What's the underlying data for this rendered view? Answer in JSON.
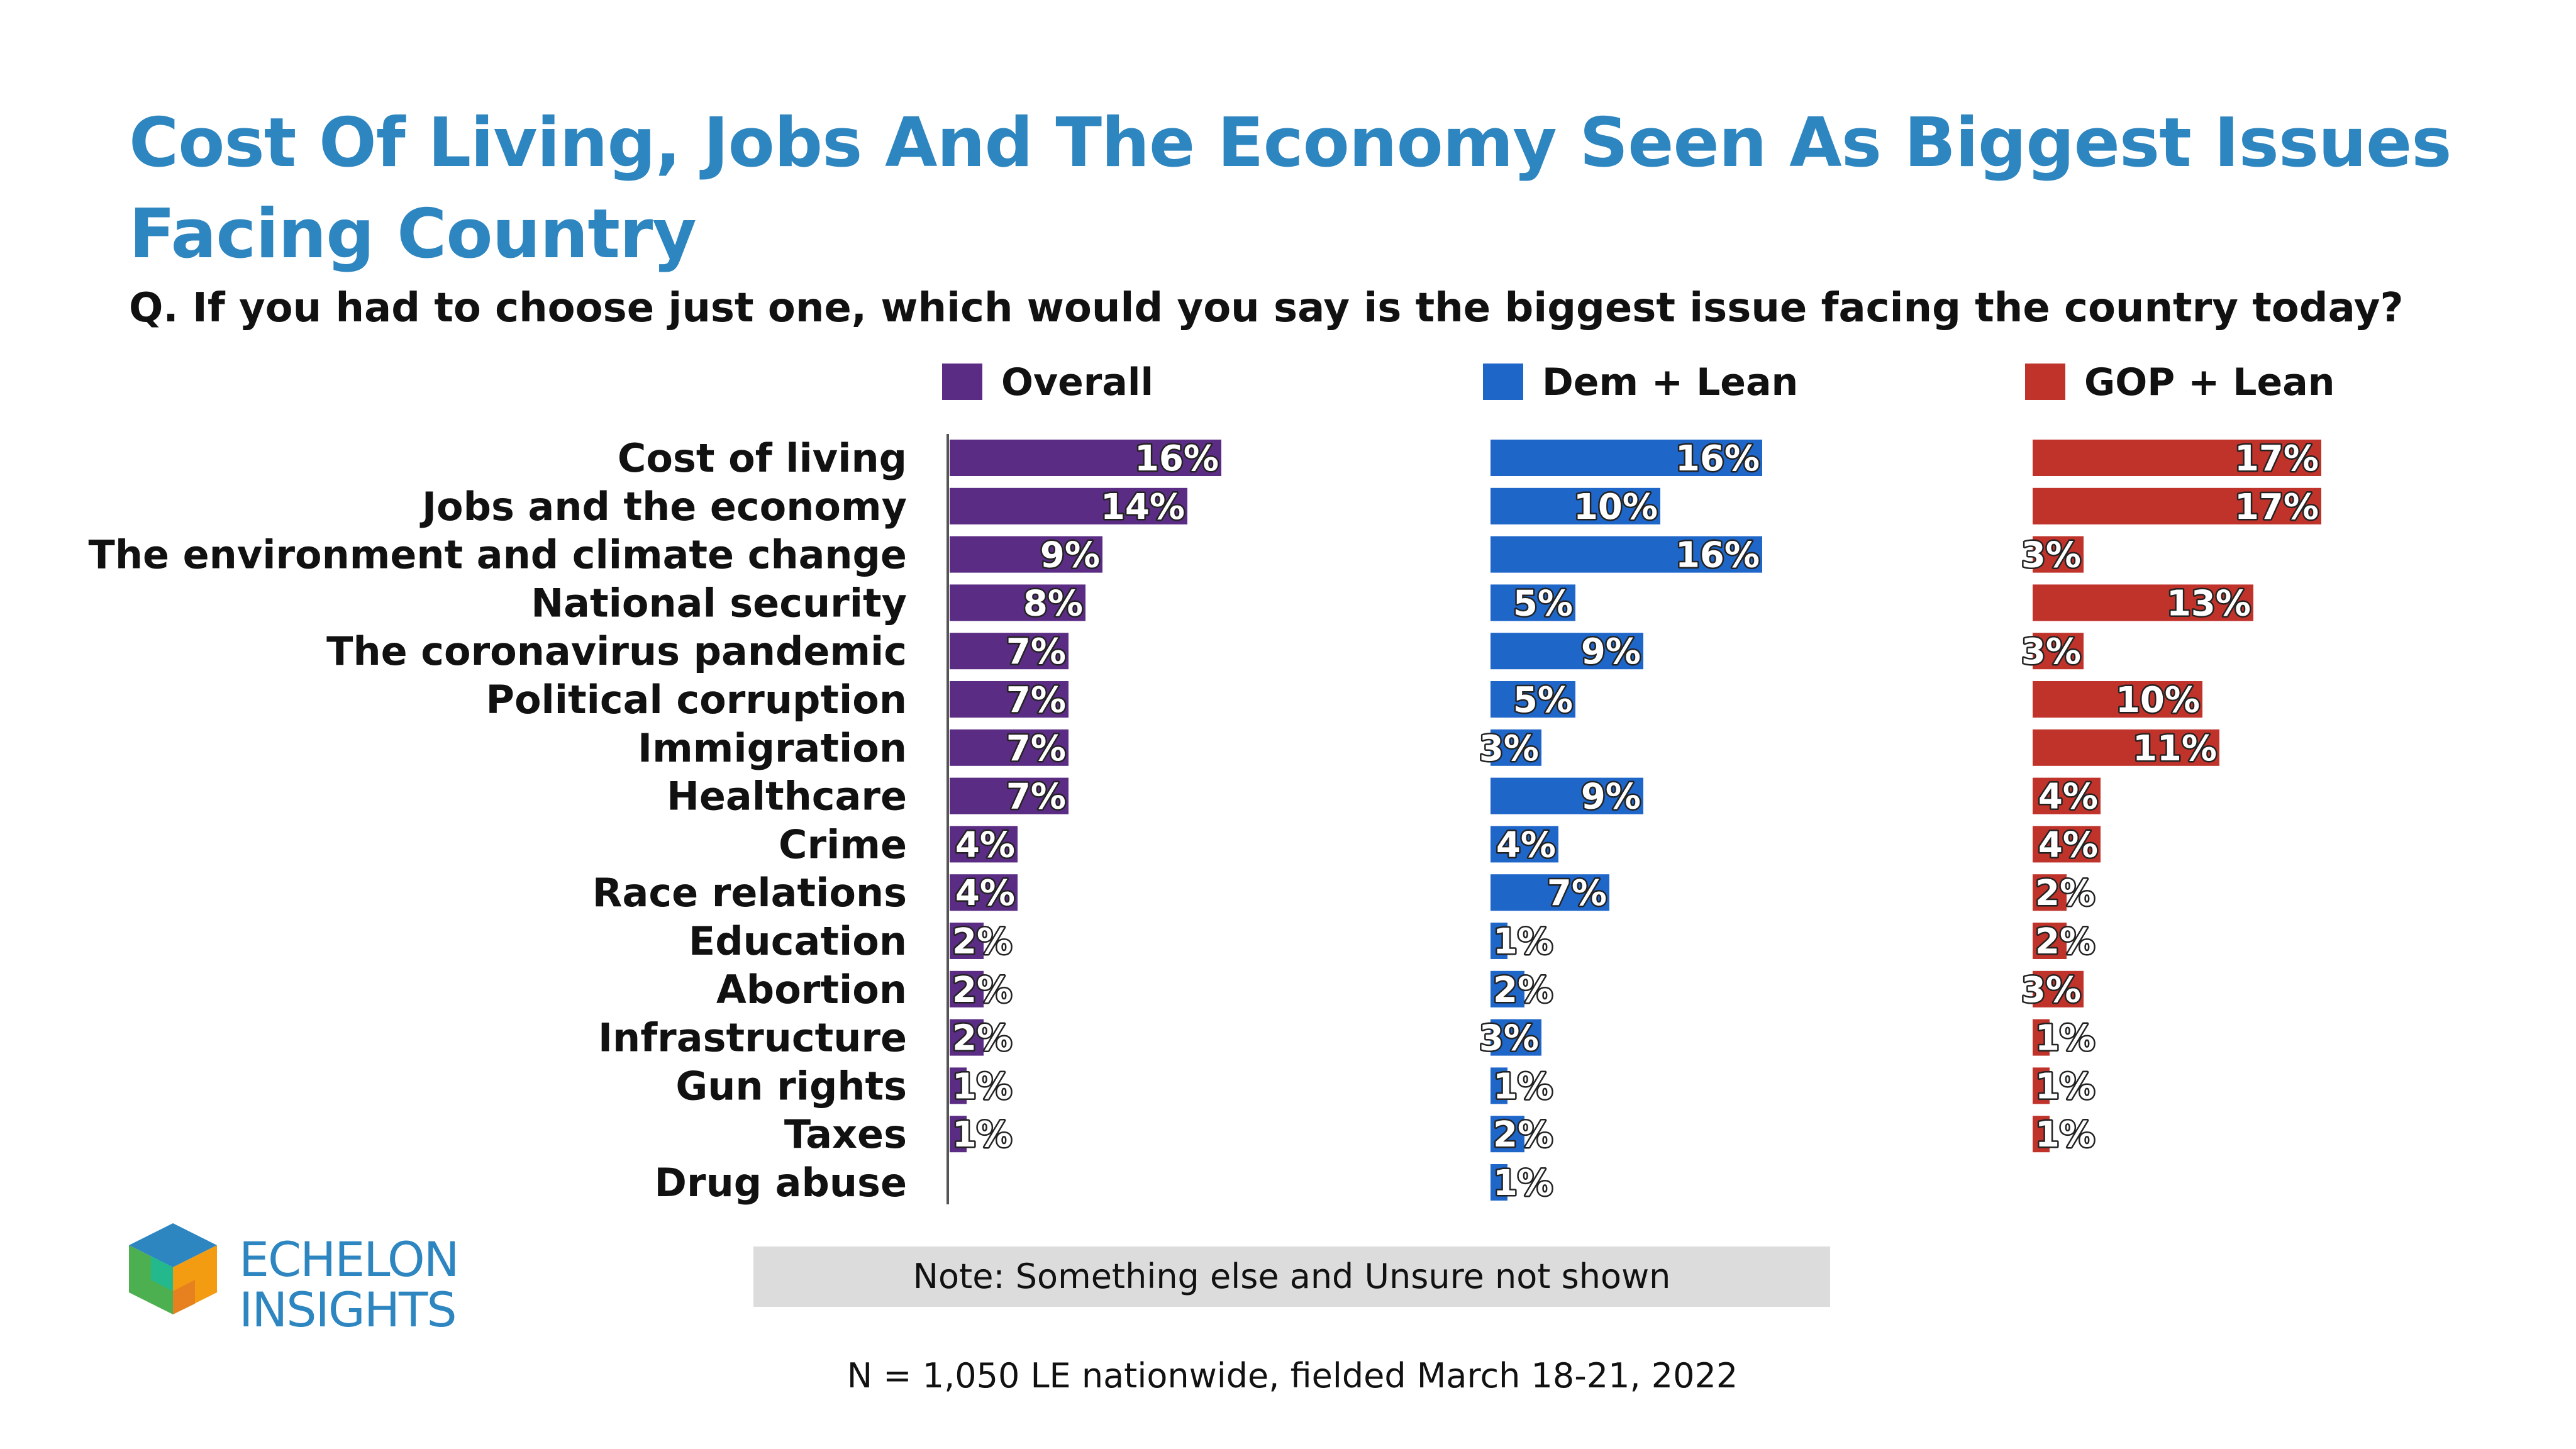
{
  "title": "Cost Of Living, Jobs And The Economy Seen As Biggest Issues Facing Country",
  "question": "Q. If you had to choose just one, which would you say is the biggest issue facing the country today?",
  "note": "Note: Something else and Unsure not shown",
  "footer": "N = 1,050 LE nationwide, fielded March 18-21, 2022",
  "logo": {
    "line1": "ECHELON",
    "line2": "INSIGHTS"
  },
  "colors": {
    "title": "#2E86C1",
    "overall": "#5B2C83",
    "dem": "#1F66C9",
    "gop": "#C0332B"
  },
  "chart_data": {
    "type": "bar",
    "orientation": "horizontal",
    "title": "Cost Of Living, Jobs And The Economy Seen As Biggest Issues Facing Country",
    "categories": [
      "Cost of living",
      "Jobs and the economy",
      "The environment and climate change",
      "National security",
      "The coronavirus pandemic",
      "Political corruption",
      "Immigration",
      "Healthcare",
      "Crime",
      "Race relations",
      "Education",
      "Abortion",
      "Infrastructure",
      "Gun rights",
      "Taxes",
      "Drug abuse"
    ],
    "series": [
      {
        "name": "Overall",
        "color": "#5B2C83",
        "values": [
          16,
          14,
          9,
          8,
          7,
          7,
          7,
          7,
          4,
          4,
          2,
          2,
          2,
          1,
          1,
          0
        ],
        "labels": [
          "16%",
          "14%",
          "9%",
          "8%",
          "7%",
          "7%",
          "7%",
          "7%",
          "4%",
          "4%",
          "2%",
          "2%",
          "2%",
          "1%",
          "1%",
          ""
        ]
      },
      {
        "name": "Dem + Lean",
        "color": "#1F66C9",
        "values": [
          16,
          10,
          16,
          5,
          9,
          5,
          3,
          9,
          4,
          7,
          1,
          2,
          3,
          1,
          2,
          1
        ],
        "labels": [
          "16%",
          "10%",
          "16%",
          "5%",
          "9%",
          "5%",
          "3%",
          "9%",
          "4%",
          "7%",
          "1%",
          "2%",
          "3%",
          "1%",
          "2%",
          "1%"
        ]
      },
      {
        "name": "GOP + Lean",
        "color": "#C0332B",
        "values": [
          17,
          17,
          3,
          13,
          3,
          10,
          11,
          4,
          4,
          2,
          2,
          3,
          1,
          1,
          1,
          0
        ],
        "labels": [
          "17%",
          "17%",
          "3%",
          "13%",
          "3%",
          "10%",
          "11%",
          "4%",
          "4%",
          "2%",
          "2%",
          "3%",
          "1%",
          "1%",
          "1%",
          ""
        ]
      }
    ],
    "xlabel": "",
    "ylabel": "",
    "xlim": [
      0,
      17
    ],
    "legend": "top"
  }
}
